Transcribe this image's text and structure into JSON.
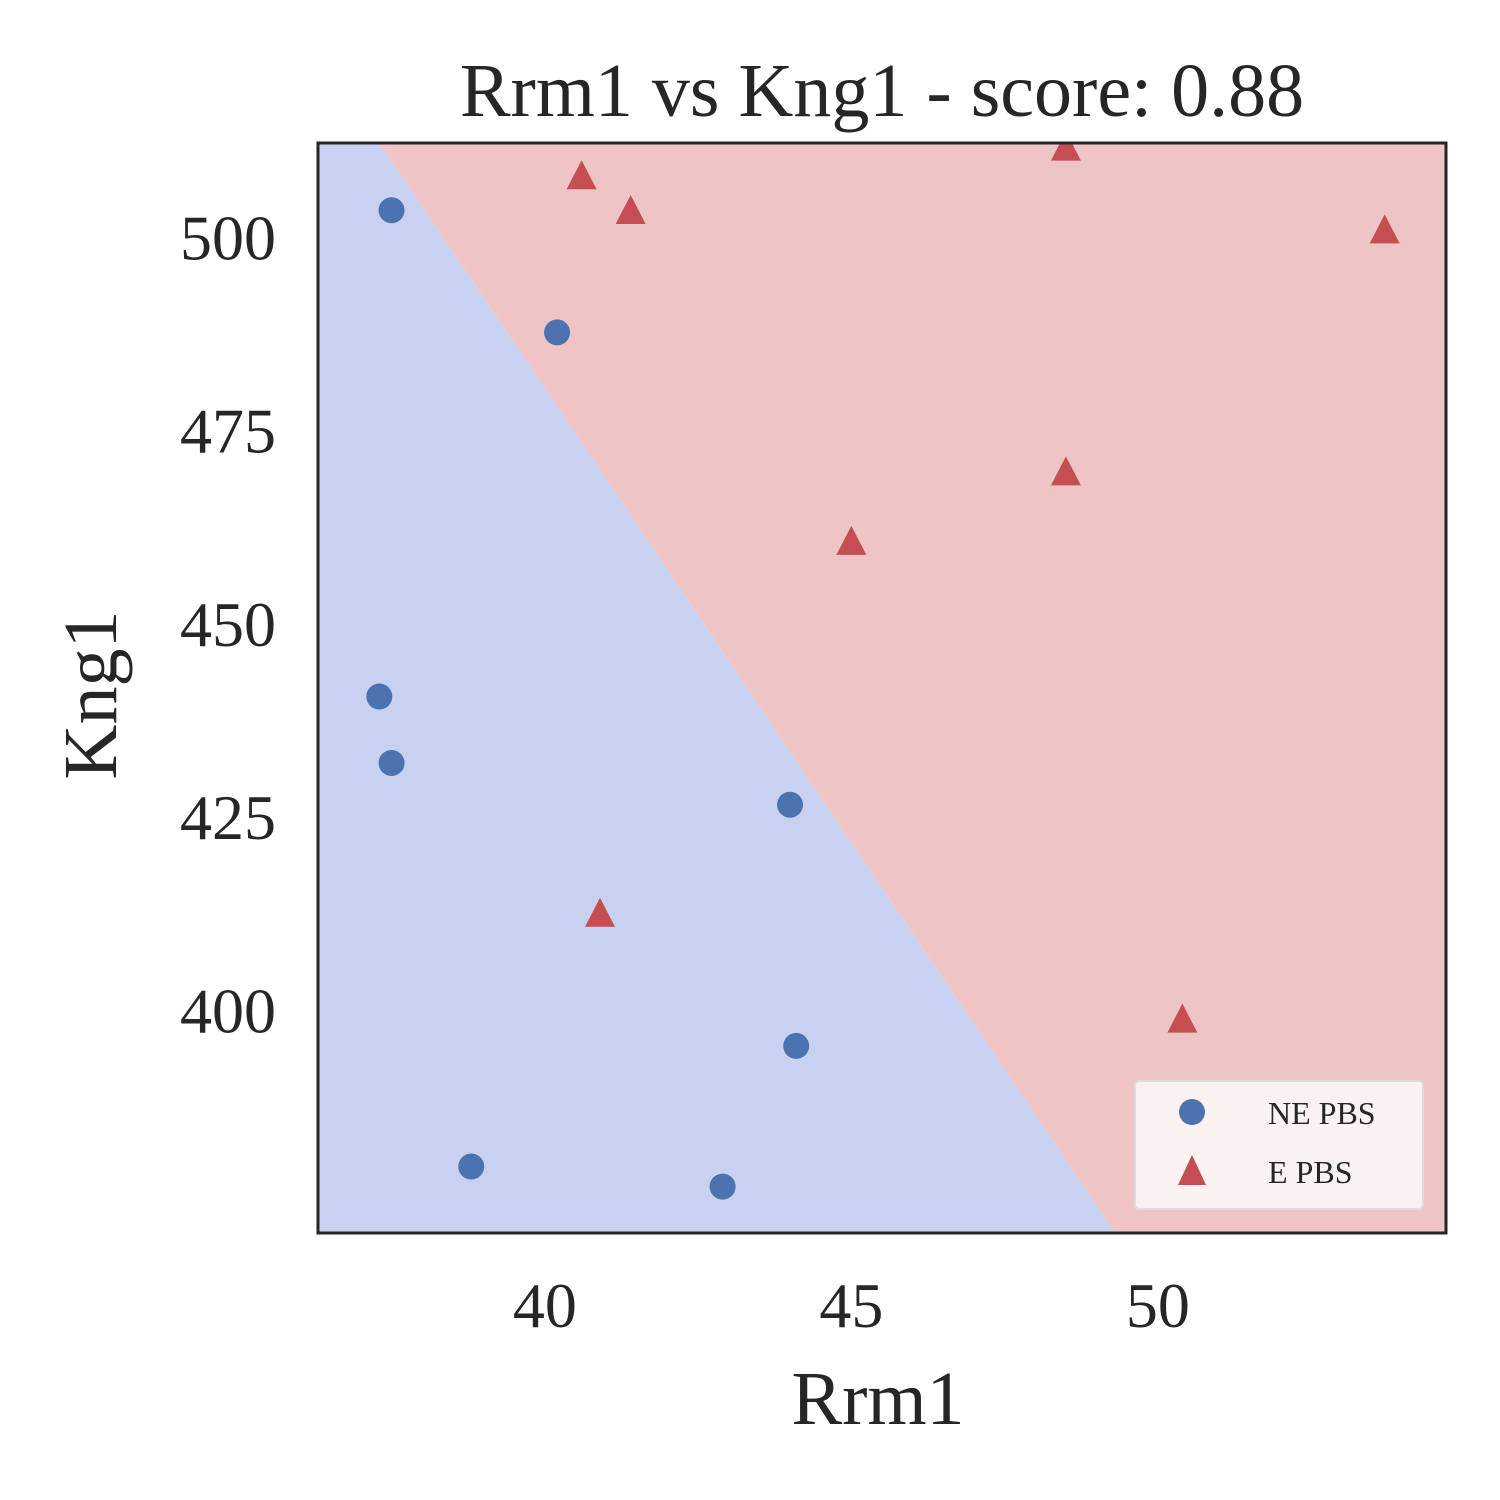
{
  "chart_data": {
    "type": "scatter",
    "title": "Rrm1 vs Kng1 - score: 0.88",
    "xlabel": "Rrm1",
    "ylabel": "Kng1",
    "xlim": [
      36.3,
      54.7
    ],
    "ylim": [
      371.2,
      512.2
    ],
    "xticks": [
      40,
      45,
      50
    ],
    "yticks": [
      400,
      425,
      450,
      475,
      500
    ],
    "grid": false,
    "legend_position": "lower-right",
    "decision_boundary": {
      "line": [
        [
          37.3,
          512.2
        ],
        [
          49.3,
          371.2
        ]
      ],
      "region_colors": {
        "NE PBS": "#c9d1f1",
        "E PBS": "#eec4c4"
      }
    },
    "series": [
      {
        "name": "NE PBS",
        "marker": "circle",
        "color": "#4c72b0",
        "points": [
          {
            "x": 37.5,
            "y": 503.5
          },
          {
            "x": 40.2,
            "y": 487.7
          },
          {
            "x": 37.3,
            "y": 440.6
          },
          {
            "x": 37.5,
            "y": 432.0
          },
          {
            "x": 44.0,
            "y": 426.6
          },
          {
            "x": 44.1,
            "y": 395.4
          },
          {
            "x": 38.8,
            "y": 379.8
          },
          {
            "x": 42.9,
            "y": 377.2
          }
        ]
      },
      {
        "name": "E PBS",
        "marker": "triangle",
        "color": "#c44e52",
        "points": [
          {
            "x": 48.5,
            "y": 511.6
          },
          {
            "x": 40.6,
            "y": 507.9
          },
          {
            "x": 41.4,
            "y": 503.4
          },
          {
            "x": 53.7,
            "y": 500.9
          },
          {
            "x": 48.5,
            "y": 469.6
          },
          {
            "x": 45.0,
            "y": 460.6
          },
          {
            "x": 40.9,
            "y": 412.5
          },
          {
            "x": 50.4,
            "y": 398.8
          }
        ]
      }
    ]
  }
}
